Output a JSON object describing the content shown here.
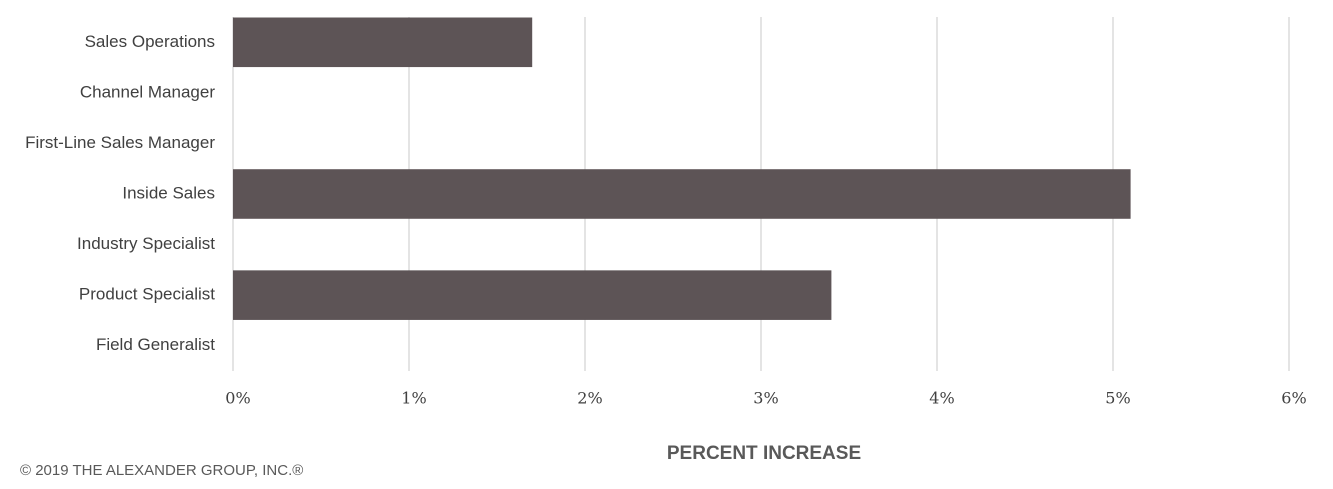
{
  "chart_data": {
    "type": "hbar",
    "categories": [
      "Sales Operations",
      "Channel Manager",
      "First-Line Sales Manager",
      "Inside Sales",
      "Industry Specialist",
      "Product Specialist",
      "Field Generalist"
    ],
    "values": [
      1.7,
      0,
      0,
      5.1,
      0,
      3.4,
      0
    ],
    "color": "#5d5456",
    "xlim": [
      0,
      6
    ],
    "xticks": [
      {
        "value": 0,
        "label": "0%"
      },
      {
        "value": 1,
        "label": "1%"
      },
      {
        "value": 2,
        "label": "2%"
      },
      {
        "value": 3,
        "label": "3%"
      },
      {
        "value": 4,
        "label": "4%"
      },
      {
        "value": 5,
        "label": "5%"
      },
      {
        "value": 6,
        "label": "6%"
      }
    ],
    "grid": true,
    "xlabel": "PERCENT INCREASE",
    "footer": "© 2019 THE ALEXANDER GROUP, INC.®"
  }
}
